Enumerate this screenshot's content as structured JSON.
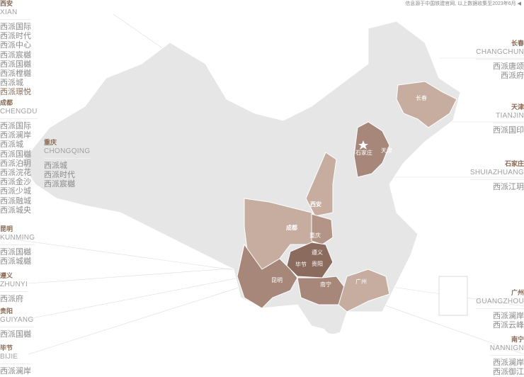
{
  "note": "信息源于中国铁建官网, 以上数据收集至2023年6月 ◀",
  "colors": {
    "base": "#e6e6e6",
    "light": "#c6ada0",
    "medium": "#a7877a",
    "dark": "#8b6b5d",
    "accent": "#8b6a55"
  },
  "cities_left": [
    {
      "cn": "西安",
      "en": "XIAN",
      "items": [
        "西派国际",
        "西派时代",
        "西派中心",
        "西派宸樾",
        "西派国樾",
        "西派樘樾",
        "西派城",
        "西派璟悦"
      ],
      "highlight": "西派璟悦"
    },
    {
      "cn": "成都",
      "en": "CHENGDU",
      "items": [
        "西派国际",
        "西派澜岸",
        "西派城",
        "西派国樾",
        "西派泊玥",
        "西派浣花",
        "西派金沙",
        "西派少城",
        "西派融城",
        "西派城央"
      ]
    },
    {
      "cn": "重庆",
      "en": "CHONGQING",
      "items": [
        "西派城",
        "西派时代",
        "西派宸樾"
      ]
    },
    {
      "cn": "昆明",
      "en": "KUNMING",
      "items": [
        "西派国樾",
        "西派城樾"
      ]
    },
    {
      "cn": "遵义",
      "en": "ZHUNYI",
      "items": [
        "西派府"
      ]
    },
    {
      "cn": "贵阳",
      "en": "GUIYANG",
      "items": [
        "西派国樾"
      ]
    },
    {
      "cn": "毕节",
      "en": "BIJIE",
      "items": [
        "西派澜岸"
      ]
    }
  ],
  "cities_right": [
    {
      "cn": "长春",
      "en": "CHANGCHUN",
      "items": [
        "西派唐颂",
        "西派府"
      ]
    },
    {
      "cn": "天津",
      "en": "TIANJIN",
      "items": [
        "西派国印"
      ]
    },
    {
      "cn": "石家庄",
      "en": "SHUIAZHUANG",
      "items": [
        "西派江玥"
      ]
    },
    {
      "cn": "广州",
      "en": "GUANGZHOU",
      "items": [
        "西派澜岸",
        "西派云峰"
      ]
    },
    {
      "cn": "南宁",
      "en": "NANNIGN",
      "items": [
        "西派澜岸",
        "西派御江"
      ]
    }
  ],
  "map_labels": [
    "长春",
    "石家庄",
    "天津",
    "西安",
    "成都",
    "重庆",
    "遵义",
    "毕节",
    "贵阳",
    "昆明",
    "南宁",
    "广州"
  ]
}
